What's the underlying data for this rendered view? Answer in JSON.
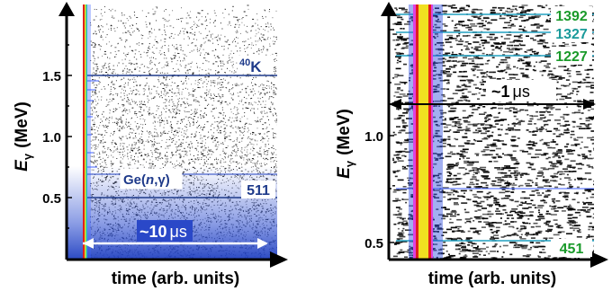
{
  "chart_data": [
    {
      "type": "heatmap",
      "xlabel": "time (arb. units)",
      "ylabel_symbol": "E",
      "ylabel_sub": "γ",
      "ylabel_unit": "(MeV)",
      "y_ticks": [
        "0.5",
        "1.0",
        "1.5"
      ],
      "ylim": [
        0.2,
        1.9
      ],
      "annotations": {
        "k40_sup": "40",
        "k40_sym": "K",
        "ge_prefix": "Ge(",
        "ge_n": "n",
        "ge_mid": ",",
        "ge_gamma": "γ",
        "ge_suffix": ")",
        "line511": "511",
        "span": "~10",
        "span_unit": "μs"
      },
      "lines_mev": [
        0.511,
        0.596,
        1.461
      ],
      "colors": {
        "scatter": "#000000",
        "band": "#2040c0",
        "line": "#1e3a8a",
        "fg": "#000000"
      }
    },
    {
      "type": "heatmap",
      "xlabel": "time (arb. units)",
      "ylabel_symbol": "E",
      "ylabel_sub": "γ",
      "ylabel_unit": "(MeV)",
      "y_ticks": [
        "0.5",
        "1.0"
      ],
      "ylim": [
        0.4,
        1.55
      ],
      "annotations": {
        "span": "~1",
        "span_unit": "μs",
        "l1392": "1392",
        "l1327": "1327",
        "l1227": "1227",
        "l451": "451"
      },
      "lines_kev": [
        1392,
        1327,
        1227,
        451
      ],
      "colors": {
        "label_green": "#1a9a2a",
        "label_teal": "#1a9a9a"
      }
    }
  ]
}
